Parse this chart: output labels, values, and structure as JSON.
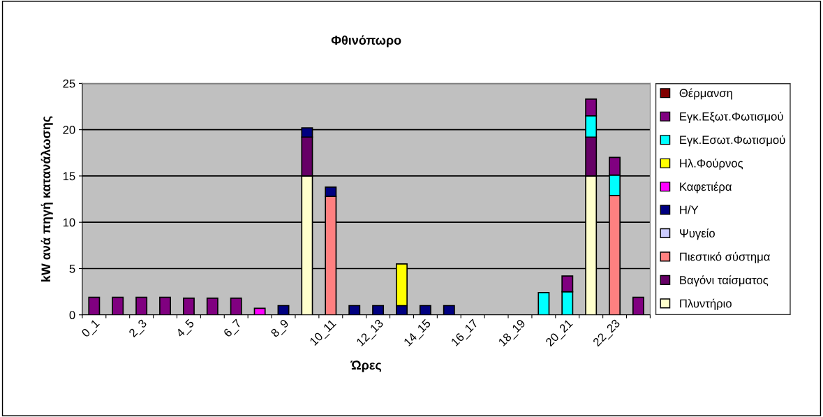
{
  "chart_data": {
    "type": "bar",
    "title": "Φθινόπωρο",
    "xlabel": "Ώρες",
    "ylabel": "kW ανά πηγή κατανάλωσης",
    "stacked": true,
    "categories": [
      "0_1",
      null,
      "2_3",
      null,
      "4_5",
      null,
      "6_7",
      null,
      "8_9",
      null,
      "10_11",
      null,
      "12_13",
      null,
      "14_15",
      null,
      "16_17",
      null,
      "18_19",
      null,
      "20_21",
      null,
      "22_23",
      null
    ],
    "series": [
      {
        "name": "Πλυντήριο",
        "color": "#ffffcc",
        "values": [
          null,
          null,
          null,
          null,
          null,
          null,
          null,
          null,
          null,
          15,
          null,
          null,
          null,
          null,
          null,
          null,
          null,
          null,
          null,
          null,
          null,
          15,
          null,
          null
        ]
      },
      {
        "name": "Βαγόνι ταίσματος",
        "color": "#660066",
        "values": [
          null,
          null,
          null,
          null,
          null,
          null,
          null,
          null,
          null,
          4.2,
          null,
          null,
          null,
          null,
          null,
          null,
          null,
          null,
          null,
          null,
          null,
          4.2,
          null,
          null
        ]
      },
      {
        "name": "Πιεστικό σύστημα",
        "color": "#ff8080",
        "values": [
          null,
          null,
          null,
          null,
          null,
          null,
          null,
          null,
          null,
          null,
          12.8,
          null,
          null,
          null,
          null,
          null,
          null,
          null,
          null,
          null,
          null,
          null,
          12.9,
          null
        ]
      },
      {
        "name": "Ψυγείο",
        "color": "#ccccff",
        "values": [
          null,
          null,
          null,
          null,
          null,
          null,
          null,
          null,
          null,
          null,
          null,
          null,
          null,
          null,
          null,
          null,
          null,
          null,
          null,
          null,
          null,
          null,
          null,
          null
        ]
      },
      {
        "name": "Η/Υ",
        "color": "#000080",
        "values": [
          null,
          null,
          null,
          null,
          null,
          null,
          null,
          null,
          1.0,
          1.0,
          1.0,
          1.0,
          1.0,
          1.0,
          1.0,
          1.0,
          null,
          null,
          null,
          null,
          null,
          null,
          null,
          null
        ]
      },
      {
        "name": "Καφετιέρα",
        "color": "#ff00ff",
        "values": [
          null,
          null,
          null,
          null,
          null,
          null,
          null,
          0.7,
          null,
          null,
          null,
          null,
          null,
          null,
          null,
          null,
          null,
          null,
          null,
          null,
          null,
          null,
          null,
          null
        ]
      },
      {
        "name": "Ηλ.Φούρνος",
        "color": "#ffff00",
        "values": [
          null,
          null,
          null,
          null,
          null,
          null,
          null,
          null,
          null,
          null,
          null,
          null,
          null,
          4.5,
          null,
          null,
          null,
          null,
          null,
          null,
          null,
          null,
          null,
          null
        ]
      },
      {
        "name": "Εγκ.Εσωτ.Φωτισμού",
        "color": "#00ffff",
        "values": [
          null,
          null,
          null,
          null,
          null,
          null,
          null,
          null,
          null,
          null,
          null,
          null,
          null,
          null,
          null,
          null,
          null,
          null,
          null,
          2.4,
          2.5,
          2.3,
          2.2,
          null
        ]
      },
      {
        "name": "Εγκ.Εξωτ.Φωτισμού",
        "color": "#800080",
        "values": [
          1.9,
          1.9,
          1.9,
          1.9,
          1.8,
          1.8,
          1.8,
          null,
          null,
          null,
          null,
          null,
          null,
          null,
          null,
          null,
          null,
          null,
          null,
          null,
          1.7,
          1.8,
          1.9,
          1.9
        ]
      },
      {
        "name": "Θέρμανση",
        "color": "#800000",
        "values": [
          null,
          null,
          null,
          null,
          null,
          null,
          null,
          null,
          null,
          null,
          null,
          null,
          null,
          null,
          null,
          null,
          null,
          null,
          null,
          null,
          null,
          null,
          null,
          null
        ]
      }
    ],
    "ylim": [
      0,
      25
    ],
    "yticks": [
      0,
      5,
      10,
      15,
      20,
      25
    ],
    "grid": "y",
    "legend": "right"
  }
}
